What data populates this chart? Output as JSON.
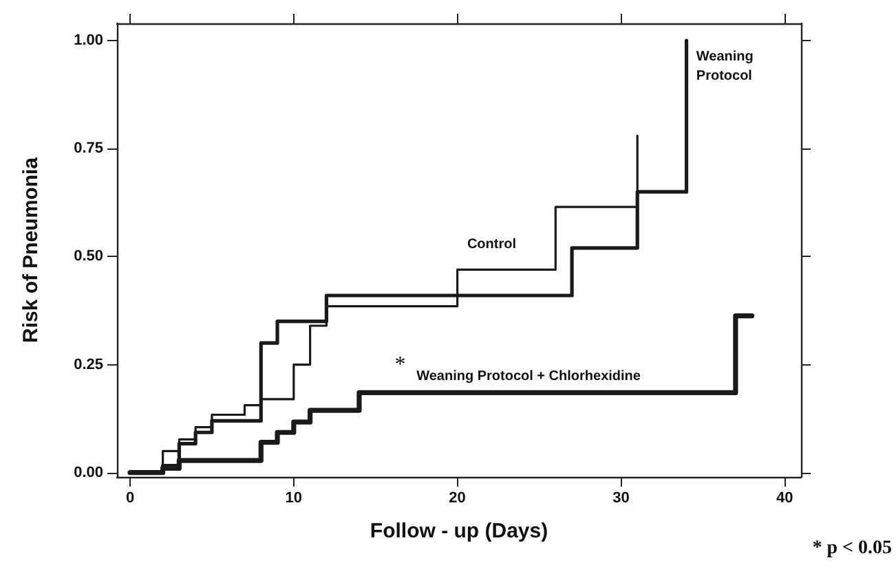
{
  "chart_data": {
    "type": "step",
    "xlabel": "Follow - up (Days)",
    "ylabel": "Risk of Pneumonia",
    "xlim": [
      -0.8,
      41
    ],
    "xticks": [
      0,
      10,
      20,
      30,
      40
    ],
    "ylim": [
      -0.01,
      1.04
    ],
    "yticks": [
      {
        "value": 0,
        "label": "0.00"
      },
      {
        "value": 0.25,
        "label": "0.25"
      },
      {
        "value": 0.5,
        "label": "0.50"
      },
      {
        "value": 0.75,
        "label": "0.75"
      },
      {
        "value": 1,
        "label": "1.00"
      }
    ],
    "grid": false,
    "legend": false,
    "marker": "none",
    "line_style": "solid",
    "series": [
      {
        "name": "Control",
        "color": "#1a1a1a",
        "x": [
          0,
          2,
          3,
          4,
          5,
          7,
          8,
          10,
          11,
          12,
          20,
          26,
          31
        ],
        "values": [
          0,
          0.05,
          0.077,
          0.105,
          0.134,
          0.156,
          0.17,
          0.25,
          0.34,
          0.385,
          0.47,
          0.615,
          0.78
        ]
      },
      {
        "name": "Weaning Protocol",
        "color": "#1a1a1a",
        "x": [
          0,
          2,
          3,
          4,
          5,
          8,
          9,
          12,
          27,
          31,
          34
        ],
        "values": [
          0,
          0.016,
          0.067,
          0.093,
          0.12,
          0.3,
          0.35,
          0.41,
          0.52,
          0.65,
          1.0
        ]
      },
      {
        "name": "Weaning Protocol + Chlorhexidine",
        "color": "#1a1a1a",
        "x": [
          0,
          2,
          3,
          8,
          9,
          10,
          11,
          14,
          37,
          38
        ],
        "values": [
          0,
          0.01,
          0.028,
          0.07,
          0.093,
          0.117,
          0.144,
          0.185,
          0.363,
          0.363
        ]
      }
    ],
    "annotations": [
      "*",
      "* p < 0.05"
    ]
  }
}
